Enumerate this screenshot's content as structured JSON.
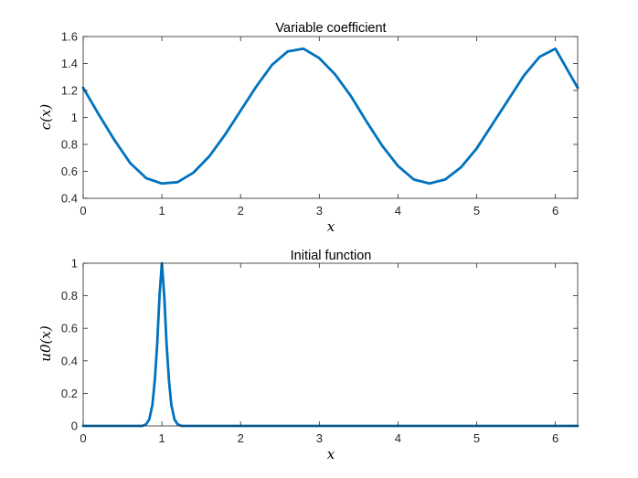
{
  "chart_data": [
    {
      "type": "line",
      "title": "Variable coefficient",
      "xlabel": "x",
      "ylabel": "c(x)",
      "xlim": [
        0,
        6.2832
      ],
      "ylim": [
        0.4,
        1.6
      ],
      "xticks": [
        0,
        1,
        2,
        3,
        4,
        5,
        6
      ],
      "yticks": [
        0.4,
        0.6,
        0.8,
        1.0,
        1.2,
        1.4,
        1.6
      ],
      "xtick_labels": [
        "0",
        "1",
        "2",
        "3",
        "4",
        "5",
        "6"
      ],
      "ytick_labels": [
        "0.4",
        "0.6",
        "0.8",
        "1",
        "1.2",
        "1.4",
        "1.6"
      ],
      "grid": false,
      "series": [
        {
          "color": "#0072bd",
          "x": [
            0,
            0.2,
            0.4,
            0.6,
            0.8,
            1.0,
            1.2,
            1.4,
            1.6,
            1.8,
            2.0,
            2.2,
            2.4,
            2.6,
            2.8,
            3.0,
            3.2,
            3.4,
            3.6,
            3.8,
            4.0,
            4.2,
            4.4,
            4.6,
            4.8,
            5.0,
            5.2,
            5.4,
            5.6,
            5.8,
            6.0,
            6.2832
          ],
          "y": [
            1.22,
            1.02,
            0.83,
            0.66,
            0.55,
            0.51,
            0.52,
            0.59,
            0.71,
            0.87,
            1.05,
            1.23,
            1.39,
            1.49,
            1.51,
            1.44,
            1.32,
            1.16,
            0.97,
            0.79,
            0.64,
            0.54,
            0.51,
            0.54,
            0.63,
            0.77,
            0.95,
            1.13,
            1.31,
            1.45,
            1.51,
            1.22
          ]
        }
      ]
    },
    {
      "type": "line",
      "title": "Initial function",
      "xlabel": "x",
      "ylabel": "u0(x)",
      "xlim": [
        0,
        6.2832
      ],
      "ylim": [
        0,
        1
      ],
      "xticks": [
        0,
        1,
        2,
        3,
        4,
        5,
        6
      ],
      "yticks": [
        0,
        0.2,
        0.4,
        0.6,
        0.8,
        1
      ],
      "xtick_labels": [
        "0",
        "1",
        "2",
        "3",
        "4",
        "5",
        "6"
      ],
      "ytick_labels": [
        "0",
        "0.2",
        "0.4",
        "0.6",
        "0.8",
        "1"
      ],
      "grid": false,
      "series": [
        {
          "color": "#0072bd",
          "x": [
            0,
            0.75,
            0.8,
            0.84,
            0.88,
            0.91,
            0.94,
            0.97,
            1.0,
            1.03,
            1.06,
            1.09,
            1.12,
            1.16,
            1.2,
            1.25,
            6.2832
          ],
          "y": [
            0,
            0,
            0.01,
            0.04,
            0.13,
            0.28,
            0.5,
            0.8,
            1.0,
            0.8,
            0.5,
            0.28,
            0.13,
            0.04,
            0.01,
            0,
            0
          ]
        }
      ]
    }
  ]
}
